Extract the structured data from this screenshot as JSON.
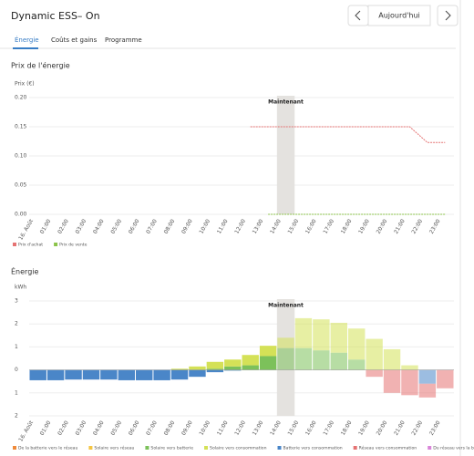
{
  "header": {
    "title": "Dynamic ESS– On",
    "date": "Aujourd'hui"
  },
  "tabs": [
    "Énergie",
    "Coûts et gains",
    "Programme"
  ],
  "chart_data": [
    {
      "type": "line",
      "title": "Prix de l'énergie",
      "y_label": "Prix (€)",
      "categories": [
        "16. Août",
        "01:00",
        "02:00",
        "03:00",
        "04:00",
        "05:00",
        "06:00",
        "07:00",
        "08:00",
        "09:00",
        "10:00",
        "11:00",
        "12:00",
        "13:00",
        "14:00",
        "15:00",
        "16:00",
        "17:00",
        "18:00",
        "19:00",
        "20:00",
        "21:00",
        "22:00",
        "23:00"
      ],
      "series": [
        {
          "name": "Prix d'achat",
          "color": "#e57373",
          "values": [
            null,
            null,
            null,
            null,
            null,
            null,
            null,
            null,
            null,
            null,
            null,
            null,
            0.15,
            0.15,
            0.15,
            0.15,
            0.15,
            0.15,
            0.15,
            0.15,
            0.15,
            0.15,
            0.123,
            0.123
          ]
        },
        {
          "name": "Prix de vente",
          "color": "#8bc34a",
          "values": [
            null,
            null,
            null,
            null,
            null,
            null,
            null,
            null,
            null,
            null,
            null,
            null,
            null,
            0,
            0,
            0,
            0,
            0,
            0,
            0,
            0,
            0,
            0,
            0
          ]
        }
      ],
      "ylim": [
        0,
        0.2
      ],
      "yticks": [
        {
          "value": 0,
          "label": "0.00"
        },
        {
          "value": 0.05,
          "label": "0.05"
        },
        {
          "value": 0.1,
          "label": "0.10"
        },
        {
          "value": 0.15,
          "label": "0.15"
        },
        {
          "value": 0.2,
          "label": "0.20"
        }
      ],
      "annotation": {
        "label": "Maintenant",
        "x": "14:00"
      }
    },
    {
      "type": "stacked_bar",
      "title": "Énergie",
      "y_label": "kWh",
      "categories": [
        "16. Août",
        "01:00",
        "02:00",
        "03:00",
        "04:00",
        "05:00",
        "06:00",
        "07:00",
        "08:00",
        "09:00",
        "10:00",
        "11:00",
        "12:00",
        "13:00",
        "14:00",
        "15:00",
        "16:00",
        "17:00",
        "18:00",
        "19:00",
        "20:00",
        "21:00",
        "22:00",
        "23:00"
      ],
      "series": [
        {
          "name": "De la batterie vers le réseau",
          "color": "#ef8a3a",
          "values": [
            0,
            0,
            0,
            0,
            0,
            0,
            0,
            0,
            0,
            0,
            0,
            0,
            0,
            0,
            0,
            0,
            0,
            0,
            0,
            0,
            0,
            0,
            0,
            0
          ]
        },
        {
          "name": "Solaire vers réseau",
          "color": "#f4c542",
          "values": [
            0,
            0,
            0,
            0,
            0,
            0,
            0,
            0,
            0,
            0,
            0,
            0,
            0,
            0,
            0,
            0,
            0,
            0,
            0,
            0,
            0,
            0,
            0,
            0
          ]
        },
        {
          "name": "Solaire vers batterie",
          "color": "#7cc15a",
          "values": [
            0,
            0,
            0,
            0,
            0,
            0,
            0,
            0,
            0,
            0,
            0.05,
            0.15,
            0.2,
            0.6,
            0.95,
            0.95,
            0.85,
            0.75,
            0.45,
            0,
            0,
            0,
            0,
            0
          ]
        },
        {
          "name": "Solaire vers consommation",
          "color": "#d4e157",
          "values": [
            0,
            0,
            0,
            0,
            0,
            0,
            0,
            0,
            0.05,
            0.15,
            0.3,
            0.3,
            0.45,
            0.45,
            0.45,
            1.3,
            1.35,
            1.3,
            1.35,
            1.35,
            0.9,
            0.2,
            0,
            0
          ]
        },
        {
          "name": "Batterie vers consommation",
          "color": "#4a86c8",
          "values": [
            -0.45,
            -0.45,
            -0.42,
            -0.42,
            -0.42,
            -0.45,
            -0.45,
            -0.45,
            -0.42,
            -0.3,
            -0.1,
            -0.03,
            0,
            0,
            0,
            0,
            0,
            0,
            0,
            0,
            0,
            0,
            -0.6,
            0
          ]
        },
        {
          "name": "Réseau vers consommation",
          "color": "#e57373",
          "values": [
            0,
            0,
            0,
            0,
            0,
            0,
            0,
            0,
            0,
            0,
            0,
            0,
            0,
            0,
            0,
            0,
            0,
            0,
            0,
            -0.3,
            -1.0,
            -1.1,
            -0.6,
            -0.8
          ]
        },
        {
          "name": "Du réseau vers la batterie",
          "color": "#d985d9",
          "values": [
            0,
            0,
            0,
            0,
            0,
            0,
            0,
            0,
            0,
            0,
            0,
            0,
            0,
            0,
            0,
            0,
            0,
            0,
            0,
            0,
            0,
            0,
            0,
            0
          ]
        }
      ],
      "ylim": [
        -2,
        3
      ],
      "yticks": [
        {
          "value": -2,
          "label": "2"
        },
        {
          "value": -1,
          "label": "1"
        },
        0,
        1,
        2,
        3
      ],
      "annotation": {
        "label": "Maintenant",
        "x": "14:00"
      }
    }
  ]
}
